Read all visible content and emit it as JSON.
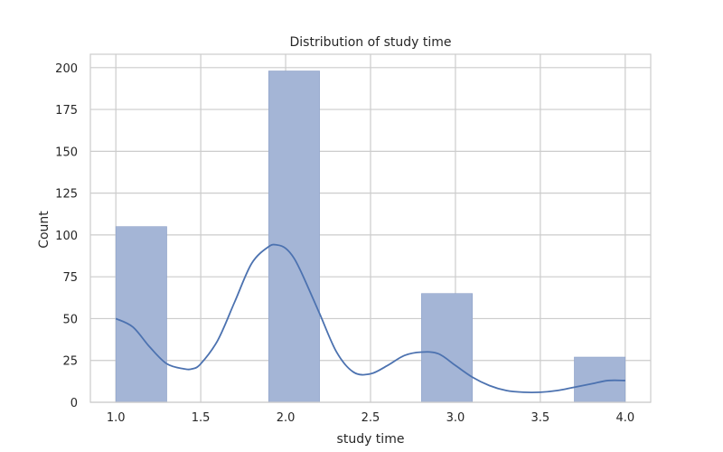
{
  "chart_data": {
    "type": "bar",
    "title": "Distribution of study time",
    "xlabel": "study time",
    "ylabel": "Count",
    "xlim": [
      0.85,
      4.15
    ],
    "ylim": [
      0,
      208
    ],
    "x_ticks": [
      "1.0",
      "1.5",
      "2.0",
      "2.5",
      "3.0",
      "3.5",
      "4.0"
    ],
    "y_ticks": [
      "0",
      "25",
      "50",
      "75",
      "100",
      "125",
      "150",
      "175",
      "200"
    ],
    "grid": true,
    "bin_width": 0.3,
    "bars": [
      {
        "x_start": 1.0,
        "x_end": 1.3,
        "value": 105
      },
      {
        "x_start": 1.9,
        "x_end": 2.2,
        "value": 198
      },
      {
        "x_start": 2.8,
        "x_end": 3.1,
        "value": 65
      },
      {
        "x_start": 3.7,
        "x_end": 4.0,
        "value": 27
      }
    ],
    "kde": {
      "x": [
        1.0,
        1.1,
        1.2,
        1.3,
        1.4,
        1.45,
        1.5,
        1.6,
        1.7,
        1.8,
        1.9,
        1.95,
        2.0,
        2.05,
        2.1,
        2.2,
        2.3,
        2.4,
        2.5,
        2.6,
        2.7,
        2.8,
        2.9,
        3.0,
        3.1,
        3.2,
        3.3,
        3.4,
        3.5,
        3.6,
        3.7,
        3.8,
        3.9,
        4.0
      ],
      "y": [
        50,
        45,
        33,
        23,
        20,
        20,
        23,
        37,
        60,
        83,
        93,
        94,
        92,
        86,
        76,
        53,
        30,
        18,
        17,
        22,
        28,
        30,
        29,
        22,
        15,
        10,
        7,
        6,
        6,
        7,
        9,
        11,
        13,
        13
      ]
    },
    "colors": {
      "bar_fill": "#a4b5d6",
      "bar_stroke": "#8fa2c9",
      "line": "#4c72b0",
      "grid": "#cccccc",
      "frame": "#cccccc",
      "text": "#262626"
    }
  }
}
